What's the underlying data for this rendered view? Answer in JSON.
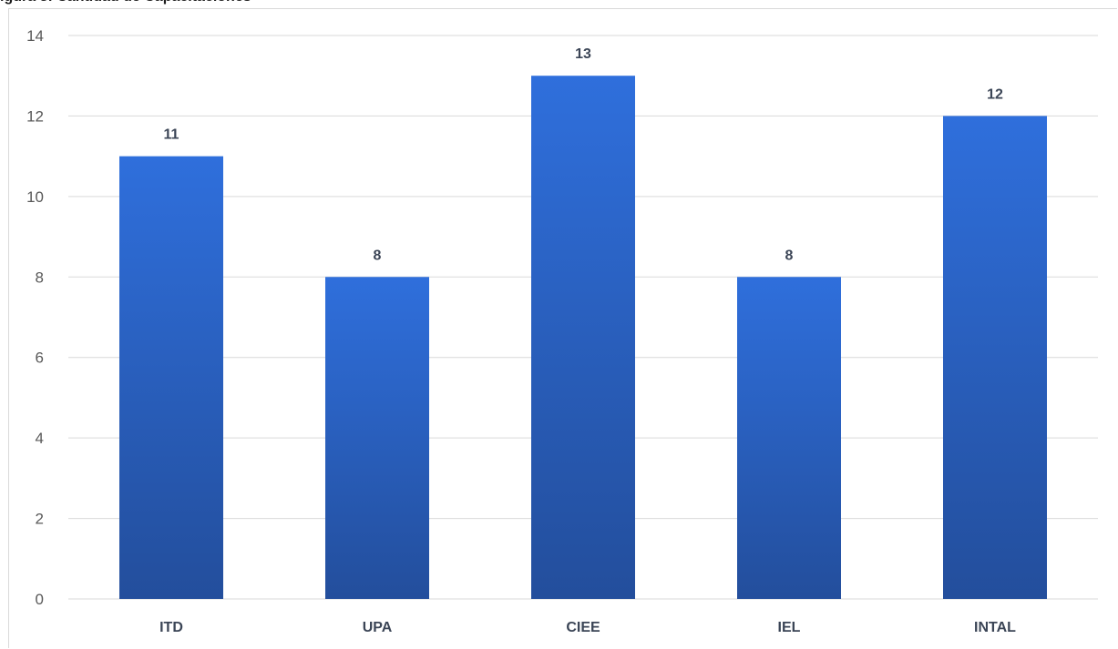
{
  "caption": "igura 3: Cantidad de Capacitaciones",
  "chart_data": {
    "type": "bar",
    "title": "",
    "xlabel": "",
    "ylabel": "",
    "categories": [
      "ITD",
      "UPA",
      "CIEE",
      "IEL",
      "INTAL"
    ],
    "values": [
      11,
      8,
      13,
      8,
      12
    ],
    "ylim": [
      0,
      14
    ],
    "yticks": [
      0,
      2,
      4,
      6,
      8,
      10,
      12,
      14
    ],
    "grid": true,
    "legend": "none",
    "data_labels": true,
    "colors": {
      "bar_top": "#2f6fdc",
      "bar_bottom": "#234e9c",
      "grid": "#d9d9d9",
      "tick_text": "#595959",
      "label_text": "#3b4556"
    }
  }
}
